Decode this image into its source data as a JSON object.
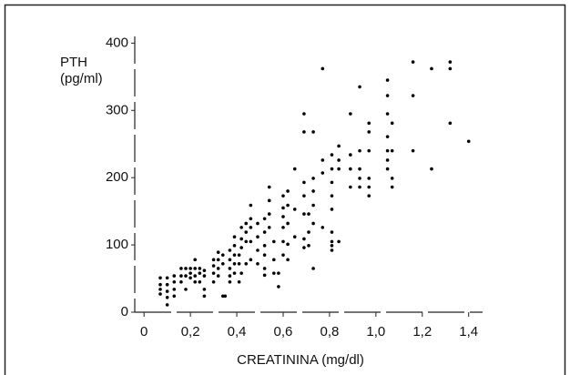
{
  "chart_data": {
    "type": "scatter",
    "x_label": "CREATININA (mg/dl)",
    "y_label": "PTH (pg/ml)",
    "color": "#000000",
    "xlim": [
      -0.04,
      1.46
    ],
    "ylim": [
      0,
      410
    ],
    "xticks": [
      0,
      {
        "value": 0.2,
        "label": "0,2"
      },
      {
        "value": 0.4,
        "label": "0,4"
      },
      {
        "value": 0.6,
        "label": "0,6"
      },
      {
        "value": 0.8,
        "label": "0,8"
      },
      {
        "value": 1.0,
        "label": "1,0"
      },
      {
        "value": 1.2,
        "label": "1,2"
      },
      {
        "value": 1.4,
        "label": "1,4"
      }
    ],
    "yticks": [
      0,
      100,
      200,
      300,
      400
    ],
    "x": [
      0.07,
      0.07,
      0.07,
      0.07,
      0.1,
      0.1,
      0.1,
      0.1,
      0.1,
      0.13,
      0.13,
      0.13,
      0.13,
      0.16,
      0.16,
      0.16,
      0.18,
      0.18,
      0.18,
      0.2,
      0.2,
      0.2,
      0.22,
      0.22,
      0.22,
      0.22,
      0.24,
      0.24,
      0.24,
      0.26,
      0.26,
      0.26,
      0.26,
      0.3,
      0.3,
      0.3,
      0.3,
      0.32,
      0.32,
      0.32,
      0.32,
      0.34,
      0.34,
      0.34,
      0.35,
      0.37,
      0.37,
      0.37,
      0.37,
      0.37,
      0.39,
      0.39,
      0.39,
      0.39,
      0.39,
      0.41,
      0.41,
      0.41,
      0.42,
      0.42,
      0.42,
      0.42,
      0.44,
      0.44,
      0.44,
      0.44,
      0.46,
      0.46,
      0.46,
      0.46,
      0.46,
      0.49,
      0.49,
      0.49,
      0.49,
      0.52,
      0.52,
      0.52,
      0.52,
      0.52,
      0.52,
      0.54,
      0.54,
      0.54,
      0.54,
      0.56,
      0.56,
      0.56,
      0.58,
      0.58,
      0.6,
      0.6,
      0.6,
      0.6,
      0.6,
      0.6,
      0.62,
      0.62,
      0.62,
      0.62,
      0.62,
      0.65,
      0.65,
      0.65,
      0.69,
      0.69,
      0.69,
      0.69,
      0.69,
      0.69,
      0.69,
      0.71,
      0.71,
      0.71,
      0.73,
      0.73,
      0.73,
      0.73,
      0.73,
      0.73,
      0.77,
      0.77,
      0.77,
      0.77,
      0.81,
      0.81,
      0.81,
      0.81,
      0.81,
      0.81,
      0.81,
      0.81,
      0.81,
      0.84,
      0.84,
      0.84,
      0.84,
      0.89,
      0.89,
      0.89,
      0.89,
      0.93,
      0.93,
      0.93,
      0.93,
      0.93,
      0.97,
      0.97,
      0.97,
      0.97,
      0.97,
      0.97,
      1.05,
      1.05,
      1.05,
      1.05,
      1.05,
      1.05,
      1.05,
      1.07,
      1.07,
      1.07,
      1.07,
      1.16,
      1.16,
      1.16,
      1.24,
      1.24,
      1.32,
      1.32,
      1.32,
      1.4
    ],
    "values": [
      51,
      41,
      34,
      27,
      51,
      41,
      31,
      22,
      11,
      54,
      45,
      34,
      24,
      65,
      54,
      45,
      65,
      54,
      34,
      58,
      51,
      65,
      78,
      65,
      54,
      45,
      65,
      58,
      45,
      62,
      54,
      34,
      24,
      78,
      69,
      58,
      45,
      89,
      78,
      65,
      54,
      85,
      72,
      24,
      24,
      92,
      78,
      65,
      54,
      45,
      112,
      99,
      85,
      72,
      58,
      85,
      72,
      45,
      126,
      109,
      96,
      58,
      132,
      119,
      105,
      72,
      159,
      139,
      126,
      105,
      78,
      132,
      112,
      92,
      72,
      139,
      119,
      99,
      85,
      65,
      55,
      186,
      166,
      146,
      126,
      105,
      78,
      58,
      58,
      38,
      173,
      155,
      142,
      126,
      105,
      85,
      180,
      159,
      132,
      101,
      78,
      213,
      153,
      112,
      295,
      268,
      193,
      173,
      146,
      109,
      96,
      146,
      119,
      99,
      268,
      199,
      180,
      159,
      132,
      65,
      362,
      226,
      207,
      126,
      234,
      213,
      193,
      173,
      153,
      119,
      105,
      99,
      92,
      247,
      226,
      213,
      105,
      295,
      234,
      213,
      186,
      335,
      240,
      213,
      199,
      186,
      281,
      268,
      240,
      199,
      186,
      173,
      345,
      322,
      295,
      261,
      240,
      226,
      213,
      281,
      240,
      199,
      186,
      372,
      322,
      240,
      362,
      213,
      372,
      362,
      281,
      254
    ]
  }
}
